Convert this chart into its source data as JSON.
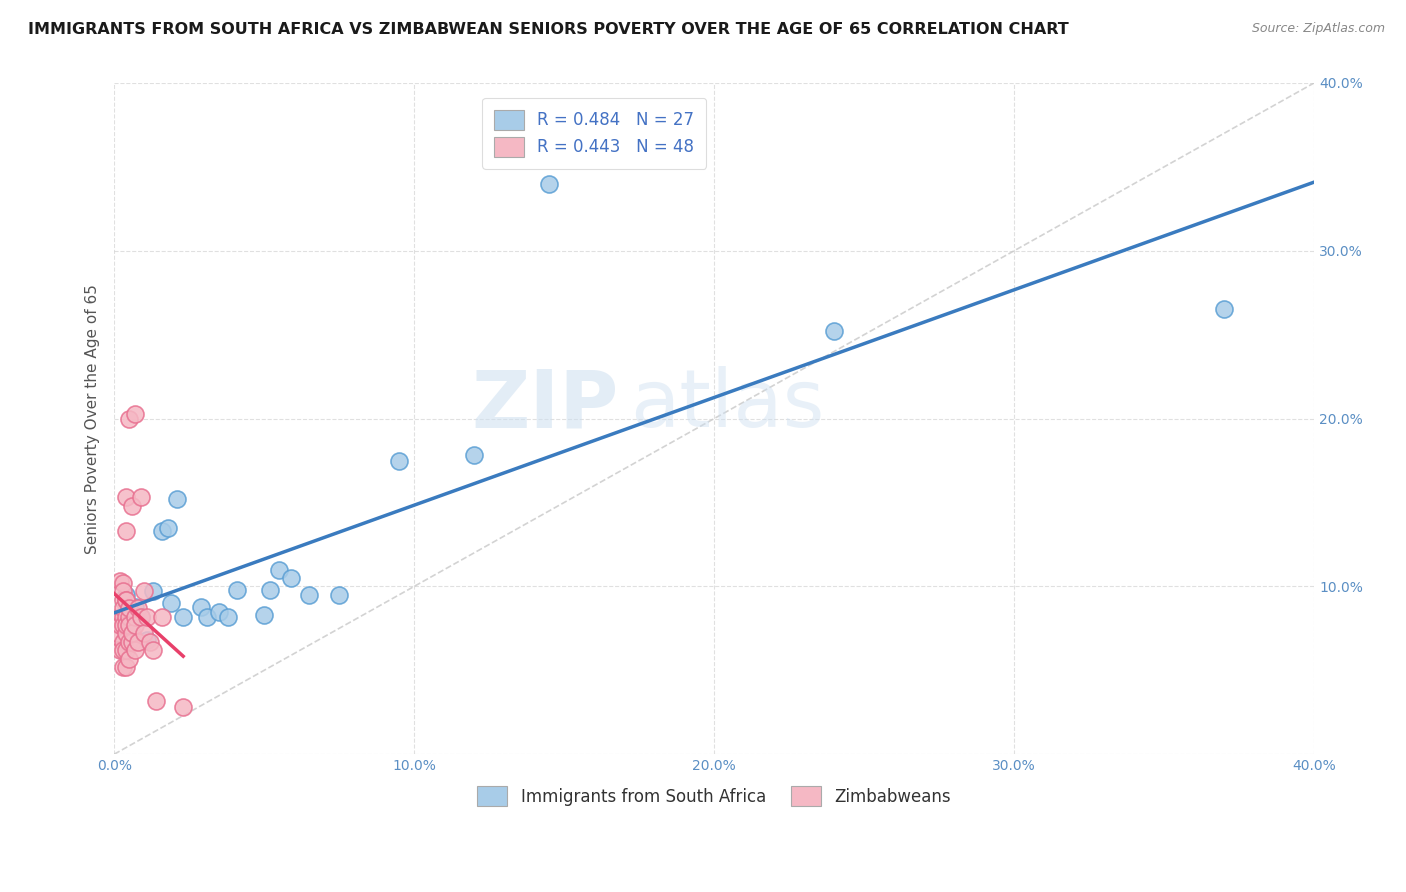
{
  "title": "IMMIGRANTS FROM SOUTH AFRICA VS ZIMBABWEAN SENIORS POVERTY OVER THE AGE OF 65 CORRELATION CHART",
  "source": "Source: ZipAtlas.com",
  "ylabel": "Seniors Poverty Over the Age of 65",
  "xlim": [
    0.0,
    0.4
  ],
  "ylim": [
    0.0,
    0.4
  ],
  "xticks": [
    0.0,
    0.1,
    0.2,
    0.3,
    0.4
  ],
  "yticks": [
    0.0,
    0.1,
    0.2,
    0.3,
    0.4
  ],
  "xtick_labels": [
    "0.0%",
    "10.0%",
    "20.0%",
    "30.0%",
    "40.0%"
  ],
  "ytick_labels": [
    "",
    "10.0%",
    "20.0%",
    "30.0%",
    "40.0%"
  ],
  "legend_labels": [
    "Immigrants from South Africa",
    "Zimbabweans"
  ],
  "blue_R": 0.484,
  "blue_N": 27,
  "pink_R": 0.443,
  "pink_N": 48,
  "blue_color": "#a8cce8",
  "pink_color": "#f5b8c4",
  "blue_edge_color": "#5b9fd4",
  "pink_edge_color": "#e87090",
  "blue_line_color": "#3a7bbf",
  "pink_line_color": "#e8406a",
  "blue_scatter": [
    [
      0.004,
      0.095
    ],
    [
      0.006,
      0.078
    ],
    [
      0.007,
      0.088
    ],
    [
      0.009,
      0.082
    ],
    [
      0.011,
      0.068
    ],
    [
      0.013,
      0.097
    ],
    [
      0.016,
      0.133
    ],
    [
      0.018,
      0.135
    ],
    [
      0.019,
      0.09
    ],
    [
      0.021,
      0.152
    ],
    [
      0.023,
      0.082
    ],
    [
      0.029,
      0.088
    ],
    [
      0.031,
      0.082
    ],
    [
      0.035,
      0.085
    ],
    [
      0.038,
      0.082
    ],
    [
      0.041,
      0.098
    ],
    [
      0.05,
      0.083
    ],
    [
      0.052,
      0.098
    ],
    [
      0.055,
      0.11
    ],
    [
      0.059,
      0.105
    ],
    [
      0.065,
      0.095
    ],
    [
      0.075,
      0.095
    ],
    [
      0.095,
      0.175
    ],
    [
      0.12,
      0.178
    ],
    [
      0.145,
      0.34
    ],
    [
      0.24,
      0.252
    ],
    [
      0.37,
      0.265
    ]
  ],
  "pink_scatter": [
    [
      0.001,
      0.072
    ],
    [
      0.002,
      0.082
    ],
    [
      0.002,
      0.103
    ],
    [
      0.002,
      0.062
    ],
    [
      0.002,
      0.077
    ],
    [
      0.003,
      0.052
    ],
    [
      0.003,
      0.067
    ],
    [
      0.003,
      0.082
    ],
    [
      0.003,
      0.092
    ],
    [
      0.003,
      0.102
    ],
    [
      0.003,
      0.062
    ],
    [
      0.003,
      0.077
    ],
    [
      0.003,
      0.087
    ],
    [
      0.003,
      0.097
    ],
    [
      0.004,
      0.052
    ],
    [
      0.004,
      0.072
    ],
    [
      0.004,
      0.082
    ],
    [
      0.004,
      0.092
    ],
    [
      0.004,
      0.133
    ],
    [
      0.004,
      0.062
    ],
    [
      0.004,
      0.077
    ],
    [
      0.004,
      0.092
    ],
    [
      0.004,
      0.153
    ],
    [
      0.005,
      0.067
    ],
    [
      0.005,
      0.082
    ],
    [
      0.005,
      0.057
    ],
    [
      0.005,
      0.077
    ],
    [
      0.005,
      0.087
    ],
    [
      0.005,
      0.2
    ],
    [
      0.006,
      0.067
    ],
    [
      0.006,
      0.072
    ],
    [
      0.006,
      0.148
    ],
    [
      0.007,
      0.082
    ],
    [
      0.007,
      0.062
    ],
    [
      0.007,
      0.077
    ],
    [
      0.007,
      0.203
    ],
    [
      0.008,
      0.087
    ],
    [
      0.008,
      0.067
    ],
    [
      0.009,
      0.082
    ],
    [
      0.009,
      0.153
    ],
    [
      0.01,
      0.072
    ],
    [
      0.01,
      0.097
    ],
    [
      0.011,
      0.082
    ],
    [
      0.012,
      0.067
    ],
    [
      0.013,
      0.062
    ],
    [
      0.014,
      0.032
    ],
    [
      0.016,
      0.082
    ],
    [
      0.023,
      0.028
    ]
  ],
  "pink_trend_xlim": [
    0.0,
    0.023
  ],
  "blue_trend_xlim": [
    0.0,
    0.4
  ],
  "watermark_top": "ZIP",
  "watermark_bottom": "atlas",
  "background_color": "#ffffff",
  "grid_color": "#cccccc",
  "title_fontsize": 11.5,
  "axis_label_fontsize": 11,
  "tick_fontsize": 10,
  "legend_fontsize": 12
}
